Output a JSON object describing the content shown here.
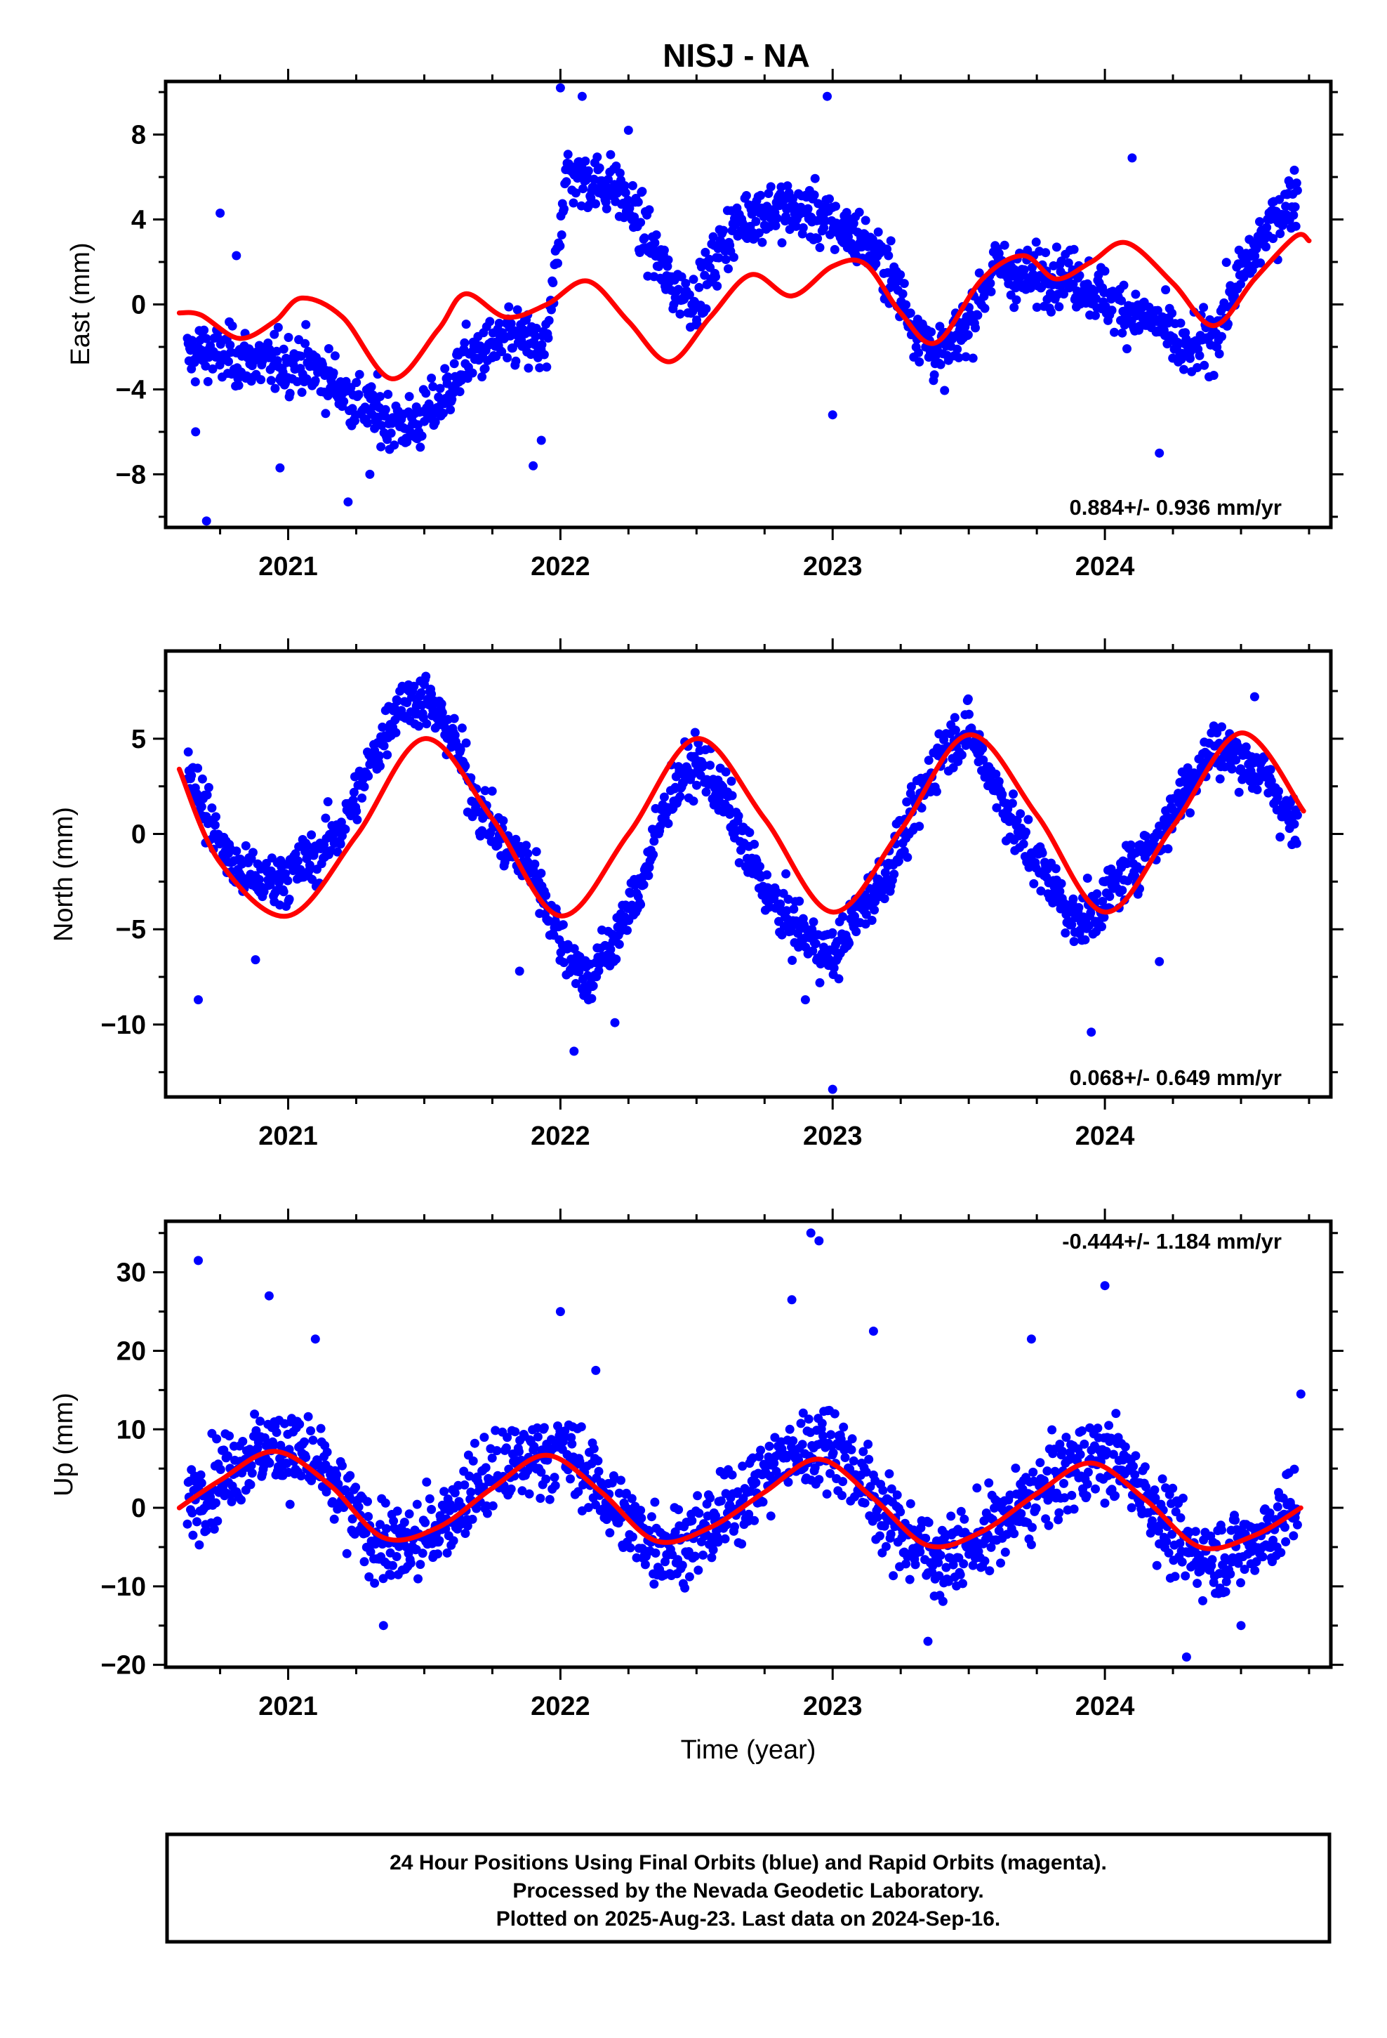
{
  "title": "NISJ - NA",
  "colors": {
    "dots": "#0000ff",
    "model": "#ff0000",
    "frame": "#000000"
  },
  "xaxis": {
    "label": "Time (year)",
    "ticks": [
      "2021",
      "2022",
      "2023",
      "2024"
    ]
  },
  "caption": {
    "line1": "24 Hour Positions Using Final Orbits (blue) and Rapid Orbits (magenta).",
    "line2": "Processed by the Nevada Geodetic Laboratory.",
    "line3": "Plotted on 2025-Aug-23. Last data on 2024-Sep-16."
  },
  "chart_data": [
    {
      "type": "scatter",
      "component": "east",
      "ylabel": "East (mm)",
      "rate": "0.884+/- 0.936 mm/yr",
      "xlim": [
        2020.55,
        2024.83
      ],
      "ylim": [
        -10.5,
        10.5
      ],
      "yticks": [
        -8,
        -4,
        0,
        4,
        8
      ],
      "grid": false,
      "series": [
        {
          "role": "daily positions",
          "x": [
            2020.63,
            2020.68,
            2020.75,
            2020.85,
            2020.95,
            2021.05,
            2021.15,
            2021.25,
            2021.35,
            2021.45,
            2021.55,
            2021.65,
            2021.75,
            2021.85,
            2021.95,
            2022.02,
            2022.1,
            2022.2,
            2022.3,
            2022.4,
            2022.5,
            2022.6,
            2022.7,
            2022.8,
            2022.9,
            2023.0,
            2023.1,
            2023.2,
            2023.3,
            2023.4,
            2023.5,
            2023.6,
            2023.7,
            2023.8,
            2023.9,
            2024.0,
            2024.1,
            2024.2,
            2024.3,
            2024.4,
            2024.5,
            2024.6,
            2024.7
          ],
          "y": [
            -2.5,
            -2.2,
            -2.4,
            -2.6,
            -2.8,
            -2.7,
            -3.5,
            -4.6,
            -5.3,
            -5.8,
            -4.8,
            -2.7,
            -2.0,
            -1.6,
            -2.2,
            6.2,
            5.8,
            5.6,
            3.6,
            1.0,
            0.2,
            3.0,
            4.3,
            4.5,
            4.4,
            3.8,
            3.1,
            1.8,
            -1.0,
            -2.6,
            -0.8,
            1.9,
            1.2,
            1.5,
            1.2,
            0.3,
            -0.4,
            -0.9,
            -2.4,
            -1.5,
            1.4,
            3.6,
            5.2
          ]
        },
        {
          "role": "model",
          "x": [
            2020.6,
            2020.68,
            2020.82,
            2020.95,
            2021.05,
            2021.2,
            2021.38,
            2021.55,
            2021.65,
            2021.8,
            2021.95,
            2022.1,
            2022.25,
            2022.4,
            2022.55,
            2022.7,
            2022.85,
            2023.0,
            2023.12,
            2023.25,
            2023.38,
            2023.55,
            2023.7,
            2023.82,
            2023.95,
            2024.08,
            2024.25,
            2024.4,
            2024.55,
            2024.7,
            2024.75
          ],
          "y": [
            -0.4,
            -0.5,
            -1.6,
            -0.8,
            0.3,
            -0.6,
            -3.5,
            -1.2,
            0.5,
            -0.6,
            0.0,
            1.1,
            -0.8,
            -2.7,
            -0.6,
            1.4,
            0.4,
            1.8,
            1.9,
            -0.4,
            -1.8,
            1.2,
            2.3,
            1.2,
            2.0,
            2.9,
            1.0,
            -1.0,
            1.2,
            3.2,
            3.0
          ]
        },
        {
          "role": "outliers",
          "x": [
            2020.7,
            2020.75,
            2020.81,
            2020.66,
            2020.97,
            2021.22,
            2021.3,
            2021.9,
            2021.93,
            2022.0,
            2022.08,
            2022.25,
            2022.98,
            2023.0,
            2024.1,
            2024.2
          ],
          "y": [
            -10.2,
            4.3,
            2.3,
            -6.0,
            -7.7,
            -9.3,
            -8.0,
            -7.6,
            -6.4,
            10.2,
            9.8,
            8.2,
            9.8,
            -5.2,
            6.9,
            -7.0
          ]
        }
      ]
    },
    {
      "type": "scatter",
      "component": "north",
      "ylabel": "North (mm)",
      "rate": "0.068+/- 0.649 mm/yr",
      "xlim": [
        2020.55,
        2024.83
      ],
      "ylim": [
        -13.8,
        9.6
      ],
      "yticks": [
        -10,
        -5,
        0,
        5
      ],
      "grid": false,
      "series": [
        {
          "role": "daily positions",
          "x": [
            2020.63,
            2020.7,
            2020.8,
            2020.9,
            2021.0,
            2021.1,
            2021.2,
            2021.3,
            2021.4,
            2021.5,
            2021.6,
            2021.7,
            2021.8,
            2021.9,
            2022.0,
            2022.1,
            2022.2,
            2022.3,
            2022.4,
            2022.5,
            2022.6,
            2022.7,
            2022.8,
            2022.9,
            2023.0,
            2023.1,
            2023.2,
            2023.3,
            2023.4,
            2023.5,
            2023.6,
            2023.7,
            2023.8,
            2023.9,
            2024.0,
            2024.1,
            2024.2,
            2024.3,
            2024.4,
            2024.5,
            2024.6,
            2024.7
          ],
          "y": [
            3.8,
            1.0,
            -1.8,
            -2.5,
            -2.2,
            -1.2,
            0.4,
            3.5,
            6.8,
            7.2,
            5.2,
            1.5,
            -0.8,
            -1.8,
            -5.5,
            -7.8,
            -5.5,
            -2.5,
            2.0,
            3.8,
            2.0,
            -1.5,
            -4.0,
            -5.3,
            -6.5,
            -4.0,
            -2.0,
            1.0,
            4.5,
            5.5,
            2.5,
            -0.5,
            -2.5,
            -4.8,
            -3.5,
            -1.5,
            -0.2,
            2.5,
            4.5,
            4.0,
            2.8,
            0.2
          ]
        },
        {
          "role": "model",
          "x": [
            2020.6,
            2020.75,
            2021.0,
            2021.25,
            2021.5,
            2021.75,
            2022.0,
            2022.25,
            2022.5,
            2022.75,
            2023.0,
            2023.25,
            2023.5,
            2023.75,
            2024.0,
            2024.25,
            2024.5,
            2024.73
          ],
          "y": [
            3.4,
            -1.5,
            -4.3,
            -0.1,
            5.0,
            0.8,
            -4.3,
            0.0,
            5.0,
            0.8,
            -4.1,
            0.2,
            5.2,
            1.0,
            -4.1,
            0.4,
            5.3,
            1.2
          ]
        },
        {
          "role": "outliers",
          "x": [
            2020.67,
            2020.88,
            2021.85,
            2022.05,
            2022.2,
            2022.9,
            2023.0,
            2023.95,
            2024.2,
            2024.55
          ],
          "y": [
            -8.7,
            -6.6,
            -7.2,
            -11.4,
            -9.9,
            -8.7,
            -13.4,
            -10.4,
            -6.7,
            7.2
          ]
        }
      ]
    },
    {
      "type": "scatter",
      "component": "up",
      "ylabel": "Up (mm)",
      "rate": "-0.444+/- 1.184 mm/yr",
      "xlim": [
        2020.55,
        2024.83
      ],
      "ylim": [
        -20.3,
        36.5
      ],
      "yticks": [
        -20,
        -10,
        0,
        10,
        20,
        30
      ],
      "grid": false,
      "series": [
        {
          "role": "daily positions",
          "x": [
            2020.63,
            2020.7,
            2020.8,
            2020.9,
            2021.0,
            2021.1,
            2021.2,
            2021.3,
            2021.4,
            2021.5,
            2021.6,
            2021.7,
            2021.8,
            2021.9,
            2022.0,
            2022.1,
            2022.2,
            2022.3,
            2022.4,
            2022.5,
            2022.6,
            2022.7,
            2022.8,
            2022.9,
            2023.0,
            2023.1,
            2023.2,
            2023.3,
            2023.4,
            2023.5,
            2023.6,
            2023.7,
            2023.8,
            2023.9,
            2024.0,
            2024.1,
            2024.2,
            2024.3,
            2024.4,
            2024.5,
            2024.6,
            2024.7
          ],
          "y": [
            0.5,
            2.5,
            5.5,
            7.5,
            7.8,
            5.5,
            1.0,
            -3.5,
            -5.5,
            -4.0,
            -0.5,
            3.0,
            5.0,
            6.5,
            7.5,
            4.5,
            0.0,
            -3.5,
            -5.0,
            -4.0,
            -1.0,
            2.5,
            5.5,
            7.5,
            8.5,
            4.0,
            -1.5,
            -4.5,
            -6.5,
            -5.0,
            -2.5,
            0.0,
            3.0,
            5.5,
            6.5,
            4.5,
            -1.0,
            -5.5,
            -6.5,
            -5.0,
            -3.0,
            0.0
          ]
        },
        {
          "role": "model",
          "x": [
            2020.6,
            2020.75,
            2020.95,
            2021.15,
            2021.35,
            2021.55,
            2021.75,
            2021.95,
            2022.15,
            2022.35,
            2022.55,
            2022.75,
            2022.95,
            2023.15,
            2023.35,
            2023.55,
            2023.75,
            2023.95,
            2024.15,
            2024.35,
            2024.55,
            2024.72
          ],
          "y": [
            0.0,
            3.5,
            7.2,
            3.0,
            -3.8,
            -2.5,
            2.5,
            6.7,
            2.0,
            -4.2,
            -2.5,
            2.0,
            6.2,
            1.2,
            -4.8,
            -3.0,
            1.8,
            5.7,
            1.0,
            -5.0,
            -3.5,
            0.0
          ]
        },
        {
          "role": "outliers",
          "x": [
            2020.67,
            2020.93,
            2021.1,
            2021.35,
            2022.0,
            2022.13,
            2022.85,
            2022.92,
            2022.95,
            2023.15,
            2023.35,
            2023.73,
            2024.0,
            2024.3,
            2024.5,
            2024.72
          ],
          "y": [
            31.5,
            27.0,
            21.5,
            -15.0,
            25.0,
            17.5,
            26.5,
            35.0,
            34.0,
            22.5,
            -17.0,
            21.5,
            28.3,
            -19.0,
            -15.0,
            14.5
          ]
        }
      ]
    }
  ]
}
